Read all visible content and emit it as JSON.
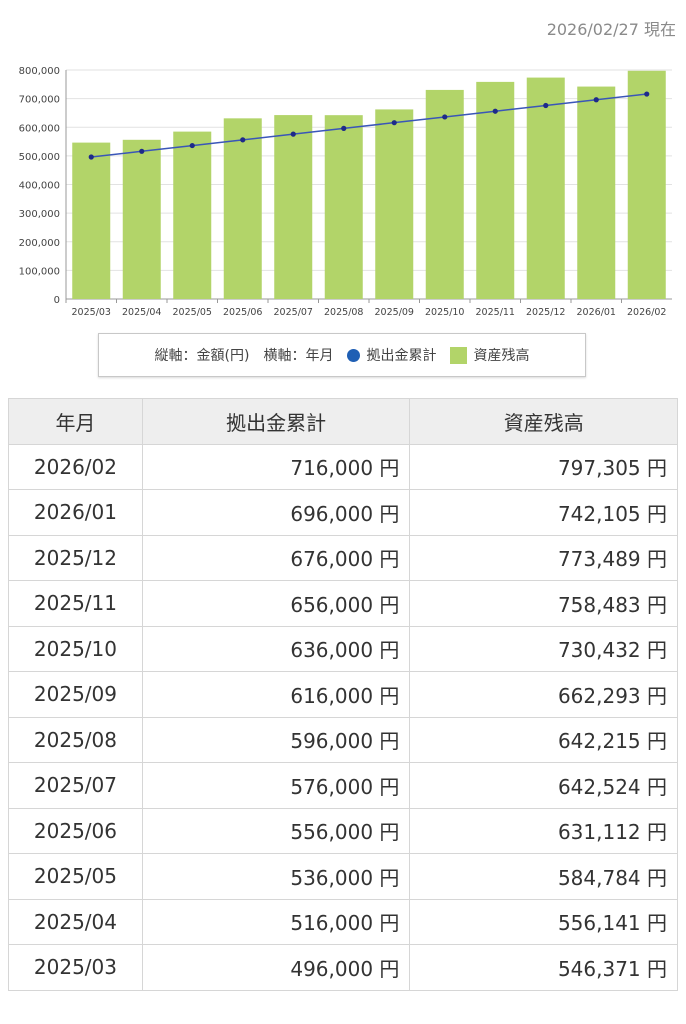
{
  "header": {
    "as_of": "2026/02/27 現在"
  },
  "legend": {
    "axis_text": "縦軸：金額(円)　横軸：年月",
    "series_contrib": "拠出金累計",
    "series_balance": "資産残高"
  },
  "colors": {
    "bar": "#b2d469",
    "line": "#3a56b8",
    "marker": "#1e2a8a",
    "grid": "#e2e2e2"
  },
  "table": {
    "headers": [
      "年月",
      "拠出金累計",
      "資産残高"
    ],
    "rows": [
      [
        "2026/02",
        "716,000 円",
        "797,305 円"
      ],
      [
        "2026/01",
        "696,000 円",
        "742,105 円"
      ],
      [
        "2025/12",
        "676,000 円",
        "773,489 円"
      ],
      [
        "2025/11",
        "656,000 円",
        "758,483 円"
      ],
      [
        "2025/10",
        "636,000 円",
        "730,432 円"
      ],
      [
        "2025/09",
        "616,000 円",
        "662,293 円"
      ],
      [
        "2025/08",
        "596,000 円",
        "642,215 円"
      ],
      [
        "2025/07",
        "576,000 円",
        "642,524 円"
      ],
      [
        "2025/06",
        "556,000 円",
        "631,112 円"
      ],
      [
        "2025/05",
        "536,000 円",
        "584,784 円"
      ],
      [
        "2025/04",
        "516,000 円",
        "556,141 円"
      ],
      [
        "2025/03",
        "496,000 円",
        "546,371 円"
      ]
    ]
  },
  "chart_data": {
    "type": "bar",
    "title": "",
    "xlabel": "年月",
    "ylabel": "金額(円)",
    "ylim": [
      0,
      800000
    ],
    "yticks": [
      "0",
      "100,000",
      "200,000",
      "300,000",
      "400,000",
      "500,000",
      "600,000",
      "700,000",
      "800,000"
    ],
    "ytick_values": [
      0,
      100000,
      200000,
      300000,
      400000,
      500000,
      600000,
      700000,
      800000
    ],
    "categories": [
      "2025/03",
      "2025/04",
      "2025/05",
      "2025/06",
      "2025/07",
      "2025/08",
      "2025/09",
      "2025/10",
      "2025/11",
      "2025/12",
      "2026/01",
      "2026/02"
    ],
    "series": [
      {
        "name": "資産残高",
        "kind": "bar",
        "values": [
          546371,
          556141,
          584784,
          631112,
          642524,
          642215,
          662293,
          730432,
          758483,
          773489,
          742105,
          797305
        ]
      },
      {
        "name": "拠出金累計",
        "kind": "line",
        "values": [
          496000,
          516000,
          536000,
          556000,
          576000,
          596000,
          616000,
          636000,
          656000,
          676000,
          696000,
          716000
        ]
      }
    ],
    "grid": true,
    "legend_position": "bottom"
  }
}
